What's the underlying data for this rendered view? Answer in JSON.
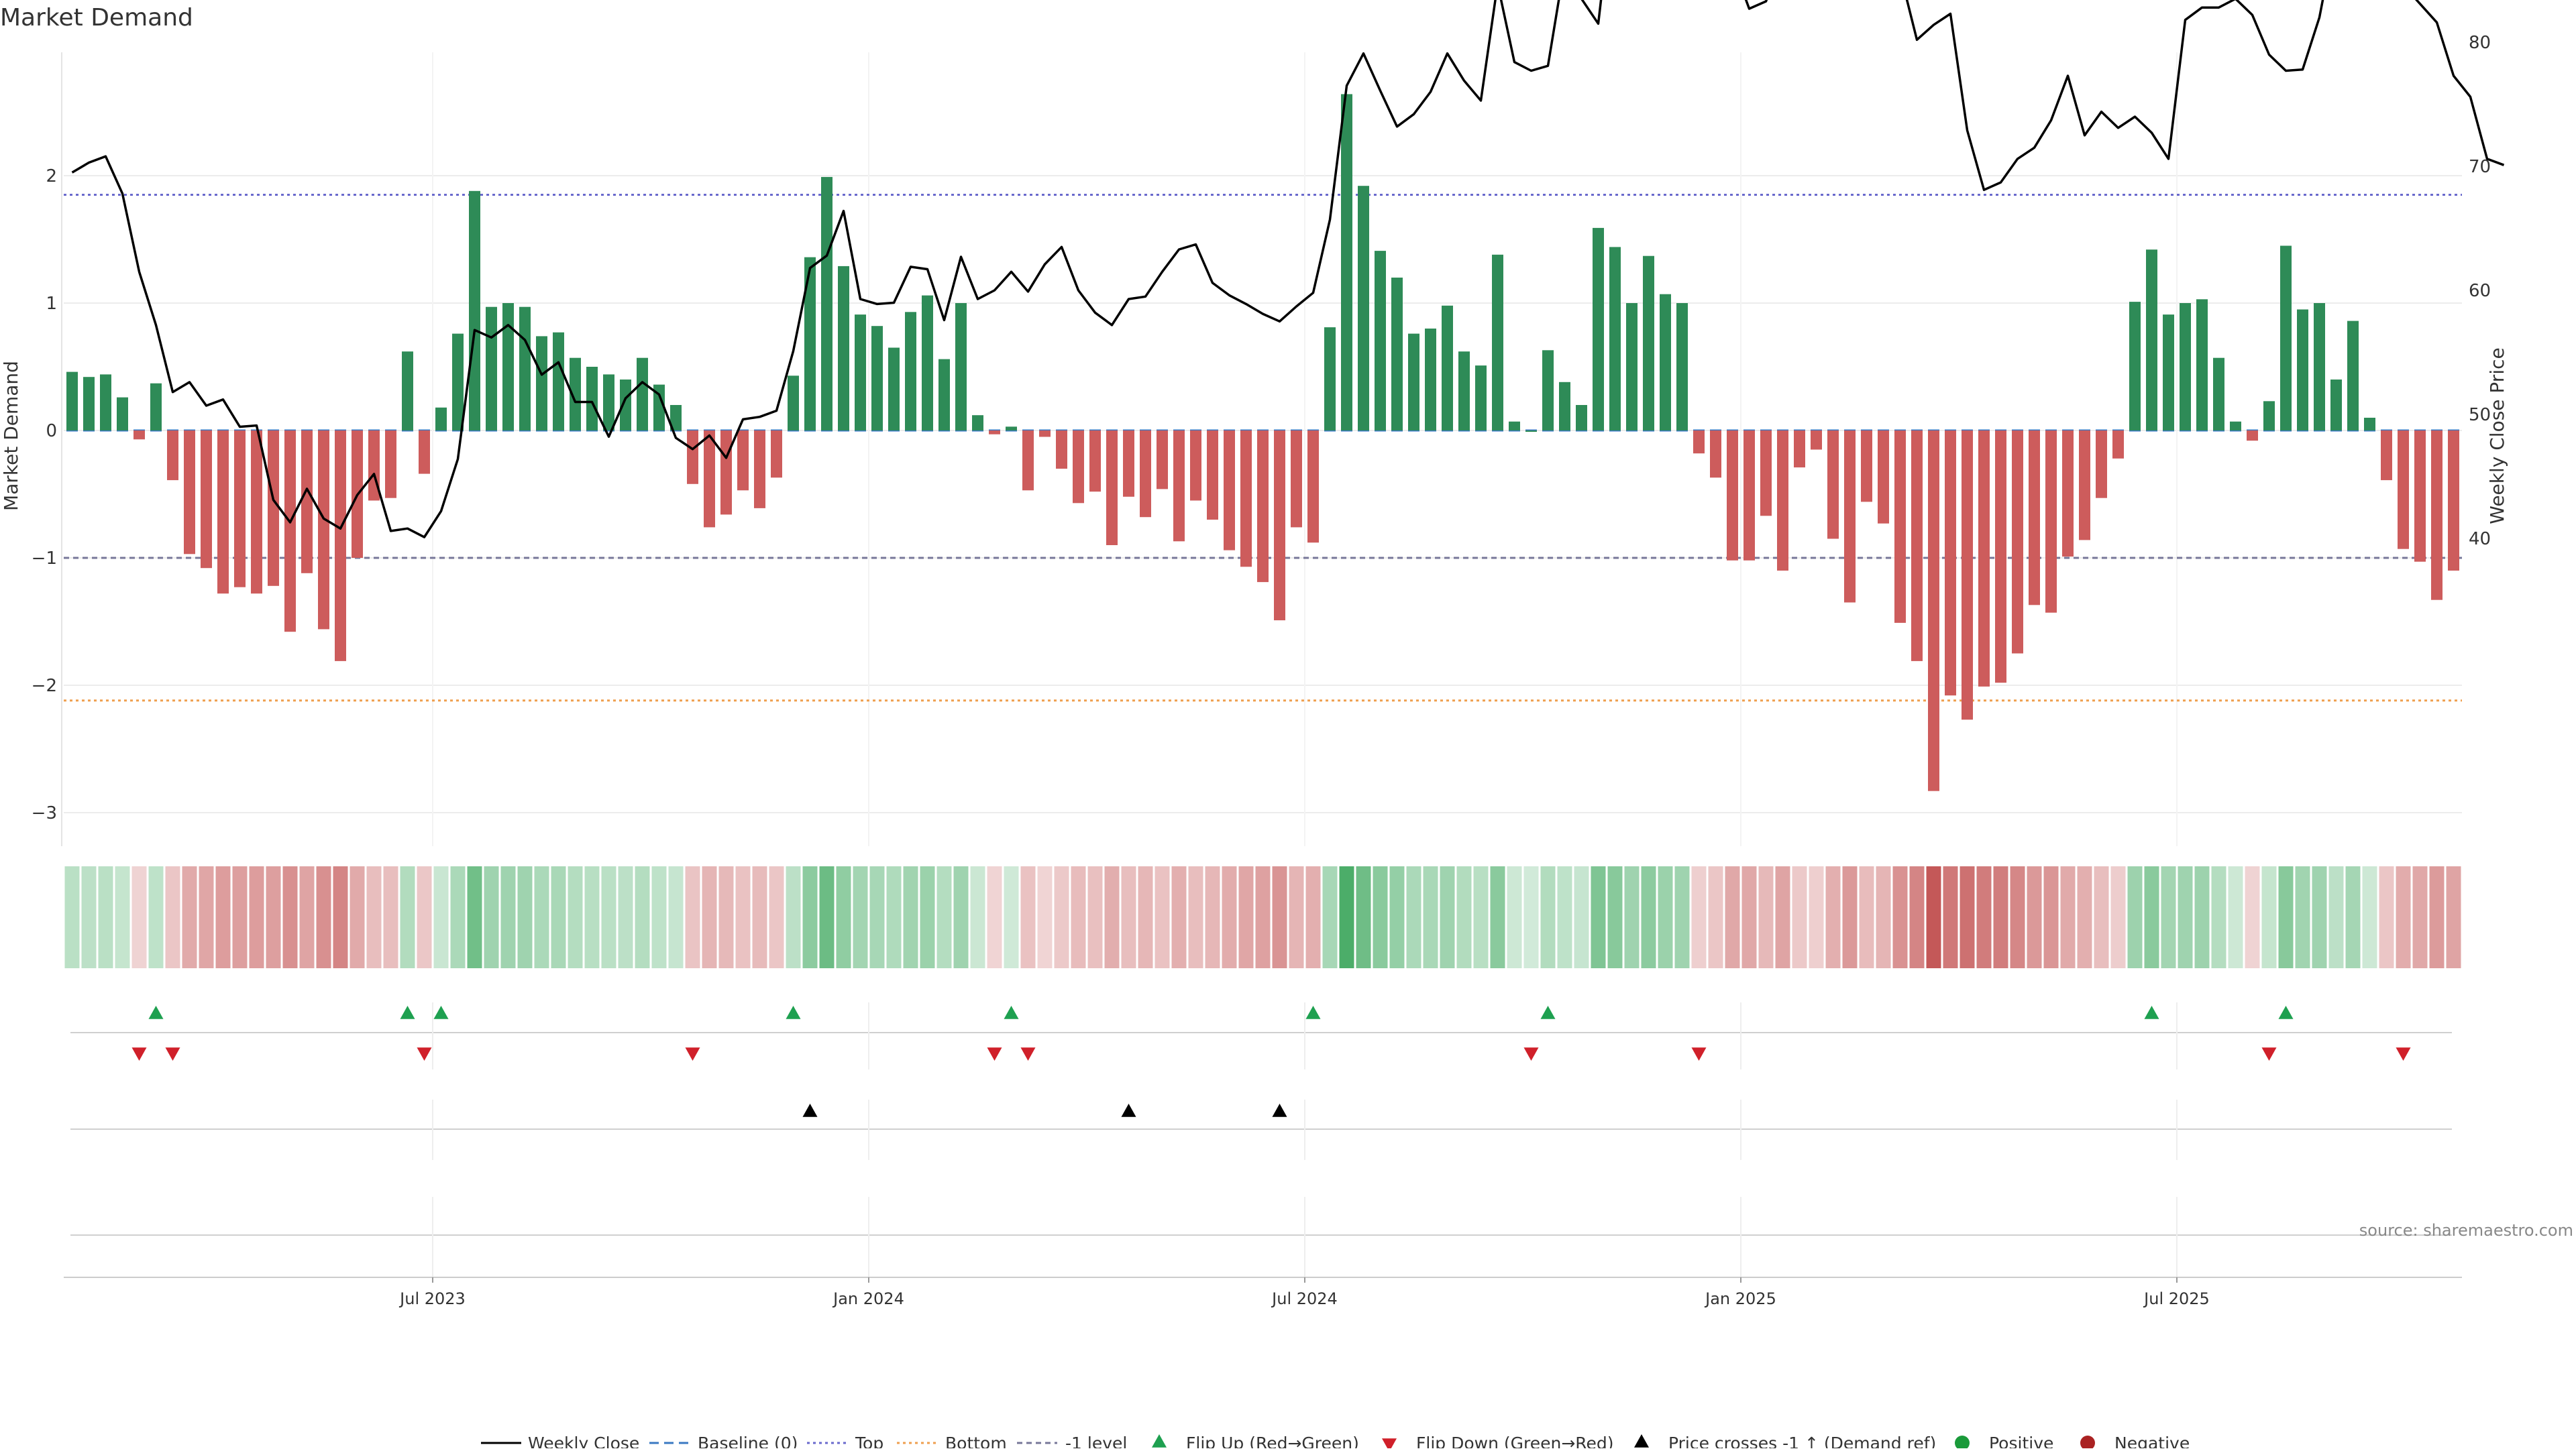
{
  "title": "Market Demand",
  "source": "source: sharemaestro.com",
  "colors": {
    "positive": "#2e8b57",
    "negative": "#cd5c5c",
    "price_line": "#000000",
    "top_line": "#6a6acd",
    "bottom_line": "#ef9f4f",
    "minus1_line": "#777799",
    "baseline": "#3a78c2",
    "flip_up": "#1ea050",
    "flip_down": "#d0202a",
    "cross": "#000000",
    "positive_dot": "#1a9a3a",
    "negative_dot": "#aa2222"
  },
  "chart_data": {
    "type": "bar",
    "title": "Market Demand",
    "ylabel": "Market Demand",
    "y2label": "Weekly Close Price",
    "ylim": [
      -3.3,
      3.0
    ],
    "y2lim": [
      38,
      96
    ],
    "yticks": [
      2,
      1,
      0,
      -1,
      -2,
      -3
    ],
    "ytick_labels": [
      "2",
      "1",
      "0",
      "−1",
      "−2",
      "−3"
    ],
    "y2ticks": [
      90,
      80,
      70,
      60,
      50,
      40
    ],
    "y2tick_labels": [
      "90",
      "80",
      "70",
      "60",
      "50",
      "40"
    ],
    "xticks": [
      {
        "index": 21.5,
        "label": "Jul 2023"
      },
      {
        "index": 47.5,
        "label": "Jan 2024"
      },
      {
        "index": 73.5,
        "label": "Jul 2024"
      },
      {
        "index": 99.5,
        "label": "Jan 2025"
      },
      {
        "index": 125.5,
        "label": "Jul 2025"
      }
    ],
    "reference_lines": {
      "top": 1.85,
      "bottom": -2.12,
      "minus1": -1.0,
      "baseline": 0
    },
    "demand": [
      0.46,
      0.42,
      0.44,
      0.26,
      -0.07,
      0.37,
      -0.39,
      -0.97,
      -1.08,
      -1.28,
      -1.23,
      -1.28,
      -1.22,
      -1.58,
      -1.12,
      -1.56,
      -1.81,
      -1.0,
      -0.55,
      -0.53,
      0.62,
      -0.34,
      0.18,
      0.76,
      1.88,
      0.97,
      1.0,
      0.97,
      0.74,
      0.77,
      0.57,
      0.5,
      0.44,
      0.4,
      0.57,
      0.36,
      0.2,
      -0.42,
      -0.76,
      -0.66,
      -0.47,
      -0.61,
      -0.37,
      0.43,
      1.36,
      1.99,
      1.29,
      0.91,
      0.82,
      0.65,
      0.93,
      1.06,
      0.56,
      1.0,
      0.12,
      -0.03,
      0.03,
      -0.47,
      -0.05,
      -0.3,
      -0.57,
      -0.48,
      -0.9,
      -0.52,
      -0.68,
      -0.46,
      -0.87,
      -0.55,
      -0.7,
      -0.94,
      -1.07,
      -1.19,
      -1.49,
      -0.76,
      -0.88,
      0.81,
      2.64,
      1.92,
      1.41,
      1.2,
      0.76,
      0.8,
      0.98,
      0.62,
      0.51,
      1.38,
      0.07,
      0.0,
      0.63,
      0.38,
      0.2,
      1.59,
      1.44,
      1.0,
      1.37,
      1.07,
      1.0,
      -0.18,
      -0.37,
      -1.02,
      -1.02,
      -0.67,
      -1.1,
      -0.29,
      -0.15,
      -0.85,
      -1.35,
      -0.56,
      -0.73,
      -1.51,
      -1.81,
      -2.83,
      -2.08,
      -2.27,
      -2.01,
      -1.98,
      -1.75,
      -1.37,
      -1.43,
      -0.99,
      -0.86,
      -0.53,
      -0.22,
      1.01,
      1.42,
      0.91,
      1.0,
      1.03,
      0.57,
      0.07,
      -0.08,
      0.23,
      1.45,
      0.95,
      1.0,
      0.4,
      0.86,
      0.1,
      -0.39,
      -0.93,
      -1.03,
      -1.33,
      -1.1
    ],
    "price": [
      69.5,
      70.3,
      70.8,
      67.8,
      61.5,
      57.2,
      51.8,
      52.6,
      50.7,
      51.2,
      49.0,
      49.1,
      43.1,
      41.3,
      44.0,
      41.6,
      40.8,
      43.5,
      45.2,
      40.6,
      40.8,
      40.1,
      42.2,
      46.4,
      56.8,
      56.2,
      57.2,
      56.0,
      53.2,
      54.2,
      51.0,
      51.0,
      48.2,
      51.3,
      52.6,
      51.6,
      48.1,
      47.2,
      48.3,
      46.5,
      49.6,
      49.8,
      50.3,
      55.1,
      61.8,
      62.8,
      66.4,
      59.3,
      58.9,
      59.0,
      61.9,
      61.7,
      57.6,
      62.7,
      59.3,
      60.0,
      61.5,
      59.9,
      62.1,
      63.5,
      60.0,
      58.2,
      57.2,
      59.3,
      59.5,
      61.5,
      63.3,
      63.7,
      60.6,
      59.6,
      58.9,
      58.1,
      57.5,
      58.7,
      59.8,
      65.7,
      76.5,
      79.1,
      76.1,
      73.2,
      74.2,
      76.0,
      79.1,
      76.9,
      75.3,
      84.7,
      78.4,
      77.7,
      78.1,
      86.3,
      83.5,
      81.5,
      93.2,
      94.1,
      92.7,
      96.0,
      94.0,
      92.9,
      84.4,
      86.4,
      82.7,
      83.3,
      86.8,
      87.0,
      89.8,
      93.2,
      88.8,
      88.6,
      89.1,
      85.6,
      80.2,
      81.4,
      82.3,
      72.9,
      68.1,
      68.7,
      70.6,
      71.5,
      73.7,
      77.3,
      72.5,
      74.4,
      73.1,
      74.0,
      72.7,
      70.6,
      81.8,
      82.8,
      82.8,
      83.5,
      82.2,
      79.0,
      77.7,
      77.8,
      82.0,
      89.0,
      88.8,
      88.2,
      84.2,
      84.6,
      83.1,
      81.6,
      77.3,
      75.6,
      70.6,
      70.1
    ],
    "flip_up_idx": [
      5,
      20,
      22,
      43,
      56,
      74,
      88,
      124,
      132
    ],
    "flip_down_idx": [
      4,
      6,
      21,
      37,
      55,
      57,
      87,
      97,
      131,
      139
    ],
    "cross_up_idx": [
      44,
      63,
      72
    ],
    "legend": {
      "weekly_close": "Weekly Close",
      "baseline": "Baseline (0)",
      "top": "Top",
      "bottom": "Bottom",
      "minus1": "-1 level",
      "flip_up": "Flip Up (Red→Green)",
      "flip_down": "Flip Down (Green→Red)",
      "cross": "Price crosses -1 ↑ (Demand ref)",
      "positive": "Positive",
      "negative": "Negative"
    }
  }
}
